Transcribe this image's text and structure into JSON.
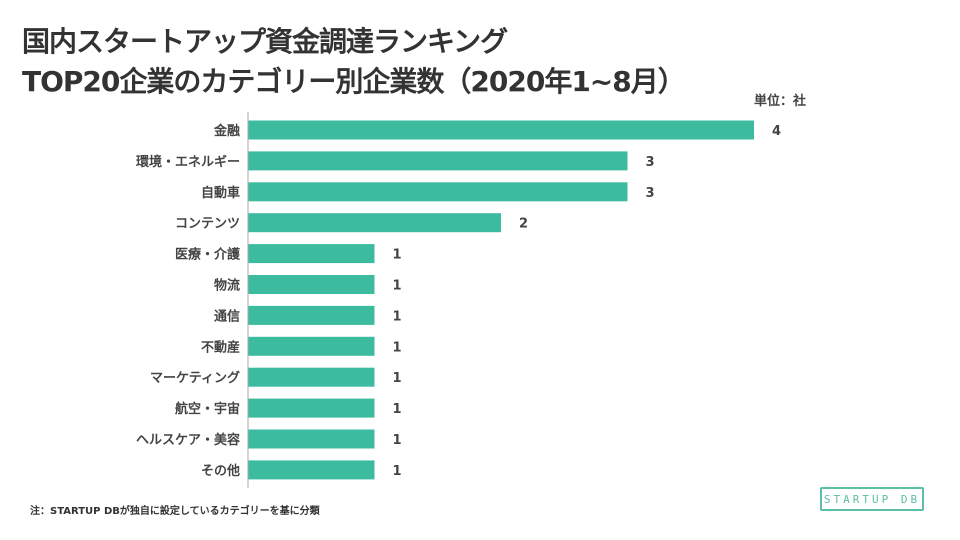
{
  "title": {
    "line1": "国内スタートアップ資金調達ランキング",
    "line2": "TOP20企業のカテゴリー別企業数（2020年1~8月）"
  },
  "unit_label": "単位：社",
  "footnote": "注：STARTUP DBが独自に設定しているカテゴリーを基に分類",
  "logo": "STARTUP DB",
  "colors": {
    "bar": "#3dbb9f",
    "axis": "#aaaaaa",
    "text": "#444444"
  },
  "chart_data": {
    "type": "bar",
    "orientation": "horizontal",
    "title": "国内スタートアップ資金調達ランキング TOP20企業のカテゴリー別企業数（2020年1~8月）",
    "unit": "社",
    "categories": [
      "金融",
      "環境・エネルギー",
      "自動車",
      "コンテンツ",
      "医療・介護",
      "物流",
      "通信",
      "不動産",
      "マーケティング",
      "航空・宇宙",
      "ヘルスケア・美容",
      "その他"
    ],
    "values": [
      4,
      3,
      3,
      2,
      1,
      1,
      1,
      1,
      1,
      1,
      1,
      1
    ],
    "xlim": [
      0,
      4
    ],
    "grid": false,
    "legend": "none"
  }
}
